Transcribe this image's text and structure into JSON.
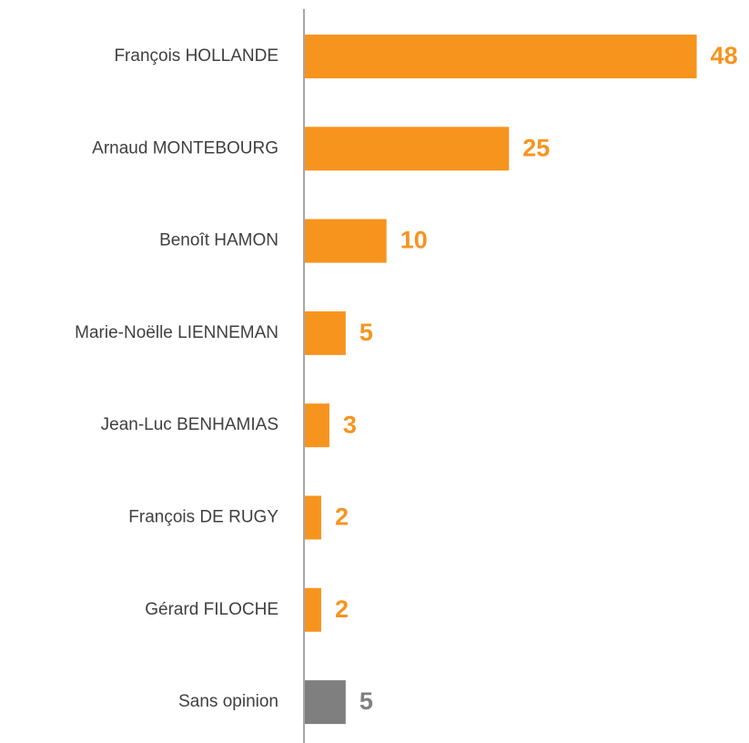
{
  "chart_data": {
    "type": "bar",
    "orientation": "horizontal",
    "categories": [
      "François HOLLANDE",
      "Arnaud MONTEBOURG",
      "Benoît HAMON",
      "Marie-Noëlle LIENNEMAN",
      "Jean-Luc BENHAMIAS",
      "François DE RUGY",
      "Gérard FILOCHE",
      "Sans opinion"
    ],
    "values": [
      48,
      25,
      10,
      5,
      3,
      2,
      2,
      5
    ],
    "colors": [
      "#f7941d",
      "#f7941d",
      "#f7941d",
      "#f7941d",
      "#f7941d",
      "#f7941d",
      "#f7941d",
      "#7f7f7f"
    ]
  }
}
